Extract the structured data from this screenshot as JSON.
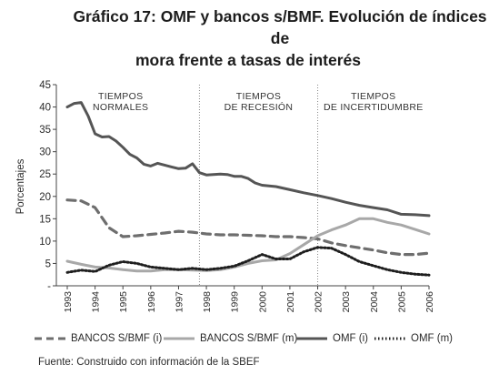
{
  "title_line1": "Gráfico 17: OMF y bancos s/BMF. Evolución de índices de",
  "title_line2": "mora frente a tasas de interés",
  "source": "Fuente: Construido con información de la SBEF",
  "colors": {
    "bancos_i": "#6e6e6e",
    "bancos_m": "#a8a8a8",
    "omf_i": "#555555",
    "omf_m": "#1e1e1e",
    "divider": "#888888"
  },
  "chart_data": {
    "type": "line",
    "ylabel": "Porcentajes",
    "xlabel": "",
    "ylim": [
      0,
      45
    ],
    "yticks": [
      0,
      5,
      10,
      15,
      20,
      25,
      30,
      35,
      40,
      45
    ],
    "ytick_labels": [
      "-",
      "5",
      "10",
      "15",
      "20",
      "25",
      "30",
      "35",
      "40",
      "45"
    ],
    "xlim": [
      1993,
      2006
    ],
    "xticks": [
      "1993",
      "1994",
      "1995",
      "1996",
      "1997",
      "1998",
      "1999",
      "2000",
      "2001",
      "2002",
      "2003",
      "2004",
      "2005",
      "2006"
    ],
    "regions": [
      {
        "label_line1": "TIEMPOS",
        "label_line2": "NORMALES",
        "start": 1993,
        "end": 1997.75
      },
      {
        "label_line1": "TIEMPOS",
        "label_line2": "DE RECESIÓN",
        "start": 1997.75,
        "end": 2002
      },
      {
        "label_line1": "TIEMPOS",
        "label_line2": "DE INCERTIDUMBRE",
        "start": 2002,
        "end": 2006
      }
    ],
    "series": [
      {
        "name": "BANCOS S/BMF (i)",
        "style": "dashed",
        "x": [
          1993,
          1993.5,
          1994,
          1994.5,
          1995,
          1995.5,
          1996,
          1996.5,
          1997,
          1997.5,
          1998,
          1998.5,
          1999,
          1999.5,
          2000,
          2000.5,
          2001,
          2001.5,
          2002,
          2002.5,
          2003,
          2003.5,
          2004,
          2004.5,
          2005,
          2005.5,
          2006
        ],
        "values": [
          19.2,
          19.0,
          17.5,
          13.0,
          11.0,
          11.2,
          11.5,
          11.8,
          12.2,
          12.0,
          11.6,
          11.4,
          11.4,
          11.3,
          11.2,
          11.0,
          11.0,
          10.8,
          10.5,
          9.6,
          9.0,
          8.5,
          8.0,
          7.4,
          7.0,
          7.0,
          7.3
        ]
      },
      {
        "name": "BANCOS S/BMF (m)",
        "style": "solid",
        "x": [
          1993,
          1993.5,
          1994,
          1994.5,
          1995,
          1995.5,
          1996,
          1996.5,
          1997,
          1997.5,
          1998,
          1998.5,
          1999,
          1999.5,
          2000,
          2000.5,
          2001,
          2001.5,
          2002,
          2002.5,
          2003,
          2003.5,
          2004,
          2004.5,
          2005,
          2005.5,
          2006
        ],
        "values": [
          5.5,
          4.8,
          4.2,
          4.0,
          3.6,
          3.3,
          3.3,
          3.6,
          3.6,
          3.5,
          3.4,
          3.6,
          4.2,
          5.0,
          5.6,
          5.8,
          7.2,
          9.2,
          11.2,
          12.5,
          13.6,
          15.0,
          15.0,
          14.2,
          13.6,
          12.6,
          11.6
        ]
      },
      {
        "name": "OMF (i)",
        "style": "solid-thick",
        "x": [
          1993,
          1993.25,
          1993.5,
          1993.75,
          1994,
          1994.25,
          1994.5,
          1994.75,
          1995,
          1995.25,
          1995.5,
          1995.75,
          1996,
          1996.25,
          1996.5,
          1996.75,
          1997,
          1997.25,
          1997.5,
          1997.75,
          1998,
          1998.25,
          1998.5,
          1998.75,
          1999,
          1999.25,
          1999.5,
          1999.75,
          2000,
          2000.5,
          2001,
          2001.5,
          2002,
          2002.5,
          2003,
          2003.5,
          2004,
          2004.5,
          2005,
          2005.5,
          2006
        ],
        "values": [
          40.0,
          40.8,
          41.0,
          38.0,
          34.0,
          33.3,
          33.4,
          32.4,
          31.0,
          29.4,
          28.6,
          27.2,
          26.8,
          27.4,
          27.0,
          26.6,
          26.2,
          26.3,
          27.3,
          25.3,
          24.8,
          24.9,
          25.0,
          24.9,
          24.5,
          24.5,
          24.0,
          23.0,
          22.5,
          22.2,
          21.5,
          20.8,
          20.2,
          19.5,
          18.7,
          18.0,
          17.5,
          17.0,
          16.0,
          15.9,
          15.7
        ]
      },
      {
        "name": "OMF (m)",
        "style": "dotted",
        "x": [
          1993,
          1993.5,
          1994,
          1994.5,
          1995,
          1995.5,
          1996,
          1996.5,
          1997,
          1997.5,
          1998,
          1998.5,
          1999,
          1999.5,
          2000,
          2000.5,
          2001,
          2001.5,
          2002,
          2002.5,
          2003,
          2003.5,
          2004,
          2004.5,
          2005,
          2005.5,
          2006
        ],
        "values": [
          3.0,
          3.5,
          3.2,
          4.6,
          5.4,
          5.0,
          4.2,
          3.9,
          3.6,
          3.9,
          3.6,
          3.9,
          4.4,
          5.6,
          7.0,
          6.0,
          6.0,
          7.6,
          8.6,
          8.4,
          7.0,
          5.4,
          4.5,
          3.6,
          3.0,
          2.6,
          2.4
        ]
      }
    ]
  }
}
